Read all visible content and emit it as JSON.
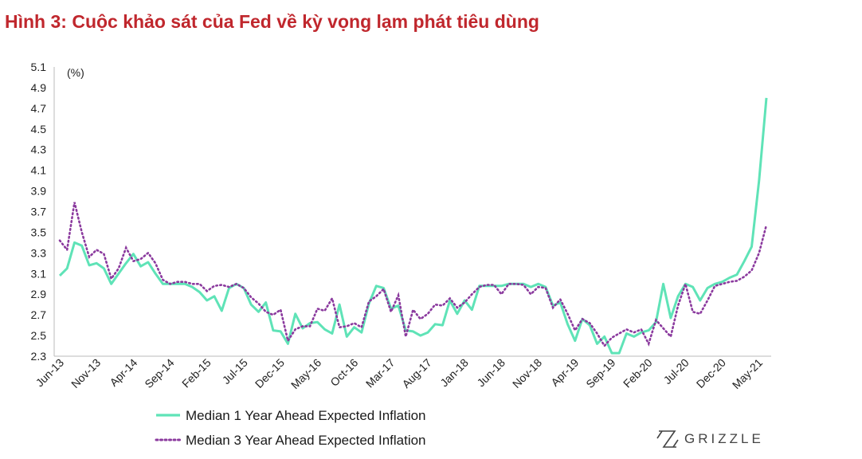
{
  "title": "Hình 3: Cuộc khảo sát của Fed về kỳ vọng lạm phát tiêu dùng",
  "logo_text": "GRIZZLE",
  "colors": {
    "title": "#c0272d",
    "series1": "#5fe3b7",
    "series2": "#8b3a9e",
    "axis": "#bbbbbb",
    "text": "#222222"
  },
  "chart_data": {
    "type": "line",
    "title": "Hình 3: Cuộc khảo sát của Fed về kỳ vọng lạm phát tiêu dùng",
    "ylabel": "(%)",
    "xlabel": "",
    "ylim": [
      2.3,
      5.1
    ],
    "y_ticks": [
      "2.3",
      "2.5",
      "2.7",
      "2.9",
      "3.1",
      "3.3",
      "3.5",
      "3.7",
      "3.9",
      "4.1",
      "4.3",
      "4.5",
      "4.7",
      "4.9",
      "5.1"
    ],
    "x_ticks": [
      "Jun-13",
      "Nov-13",
      "Apr-14",
      "Sep-14",
      "Feb-15",
      "Jul-15",
      "Dec-15",
      "May-16",
      "Oct-16",
      "Mar-17",
      "Aug-17",
      "Jan-18",
      "Jun-18",
      "Nov-18",
      "Apr-19",
      "Sep-19",
      "Feb-20",
      "Jul-20",
      "Dec-20",
      "May-21"
    ],
    "legend": [
      "Median 1 Year Ahead Expected Inflation",
      "Median 3 Year Ahead Expected Inflation"
    ],
    "series": [
      {
        "name": "Median 1 Year Ahead Expected Inflation",
        "style": "solid",
        "values": [
          3.08,
          3.15,
          3.4,
          3.37,
          3.18,
          3.2,
          3.15,
          3.0,
          3.1,
          3.2,
          3.29,
          3.17,
          3.21,
          3.1,
          3.0,
          3.0,
          3.0,
          3.0,
          2.97,
          2.92,
          2.84,
          2.88,
          2.74,
          2.96,
          3.0,
          2.96,
          2.8,
          2.73,
          2.82,
          2.55,
          2.54,
          2.42,
          2.71,
          2.57,
          2.62,
          2.63,
          2.56,
          2.52,
          2.8,
          2.49,
          2.58,
          2.53,
          2.81,
          2.98,
          2.96,
          2.76,
          2.79,
          2.55,
          2.54,
          2.5,
          2.53,
          2.61,
          2.6,
          2.84,
          2.71,
          2.84,
          2.75,
          2.98,
          2.98,
          2.98,
          2.98,
          3.0,
          3.0,
          3.0,
          2.97,
          3.0,
          2.97,
          2.79,
          2.82,
          2.61,
          2.45,
          2.66,
          2.6,
          2.42,
          2.49,
          2.33,
          2.33,
          2.52,
          2.49,
          2.53,
          2.55,
          2.63,
          3.0,
          2.67,
          2.88,
          3.0,
          2.97,
          2.84,
          2.96,
          3.0,
          3.02,
          3.06,
          3.09,
          3.22,
          3.36,
          4.0,
          4.8
        ]
      },
      {
        "name": "Median 3 Year Ahead Expected Inflation",
        "style": "dotted",
        "values": [
          3.42,
          3.33,
          3.79,
          3.5,
          3.26,
          3.33,
          3.29,
          3.05,
          3.15,
          3.35,
          3.22,
          3.24,
          3.3,
          3.2,
          3.04,
          3.0,
          3.02,
          3.02,
          3.0,
          3.0,
          2.93,
          2.98,
          2.99,
          2.97,
          3.0,
          2.96,
          2.87,
          2.81,
          2.73,
          2.7,
          2.75,
          2.45,
          2.56,
          2.59,
          2.59,
          2.76,
          2.74,
          2.86,
          2.58,
          2.59,
          2.62,
          2.58,
          2.83,
          2.88,
          2.95,
          2.73,
          2.89,
          2.49,
          2.75,
          2.66,
          2.71,
          2.8,
          2.79,
          2.86,
          2.77,
          2.82,
          2.9,
          2.97,
          2.99,
          2.99,
          2.9,
          3.0,
          3.0,
          2.99,
          2.9,
          2.97,
          2.96,
          2.77,
          2.85,
          2.71,
          2.55,
          2.66,
          2.62,
          2.52,
          2.4,
          2.48,
          2.52,
          2.56,
          2.53,
          2.56,
          2.42,
          2.65,
          2.57,
          2.49,
          2.79,
          3.0,
          2.73,
          2.71,
          2.84,
          2.98,
          3.0,
          3.02,
          3.03,
          3.07,
          3.13,
          3.3,
          3.57
        ]
      }
    ]
  }
}
